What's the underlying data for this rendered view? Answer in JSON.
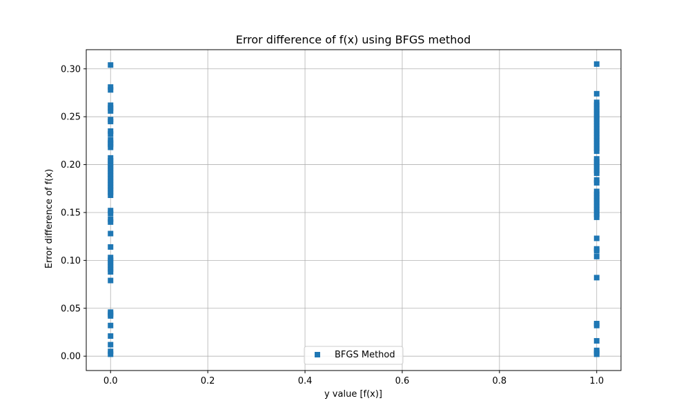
{
  "chart_data": {
    "type": "scatter",
    "title": "Error difference of f(x) using BFGS method",
    "xlabel": "y value [f(x)]",
    "ylabel": "Error difference of f(x)",
    "xlim": [
      -0.05,
      1.05
    ],
    "ylim": [
      -0.015,
      0.32
    ],
    "xticks": [
      0.0,
      0.2,
      0.4,
      0.6,
      0.8,
      1.0
    ],
    "xtick_labels": [
      "0.0",
      "0.2",
      "0.4",
      "0.6",
      "0.8",
      "1.0"
    ],
    "yticks": [
      0.0,
      0.05,
      0.1,
      0.15,
      0.2,
      0.25,
      0.3
    ],
    "ytick_labels": [
      "0.00",
      "0.05",
      "0.10",
      "0.15",
      "0.20",
      "0.25",
      "0.30"
    ],
    "grid": true,
    "legend_position": "lower-center",
    "marker": "square",
    "color": "#1f77b4",
    "series": [
      {
        "name": "BFGS Method",
        "points": [
          [
            0,
            0.304
          ],
          [
            0,
            0.281
          ],
          [
            0,
            0.278
          ],
          [
            0,
            0.262
          ],
          [
            0,
            0.259
          ],
          [
            0,
            0.256
          ],
          [
            0,
            0.247
          ],
          [
            0,
            0.245
          ],
          [
            0,
            0.235
          ],
          [
            0,
            0.232
          ],
          [
            0,
            0.226
          ],
          [
            0,
            0.223
          ],
          [
            0,
            0.221
          ],
          [
            0,
            0.218
          ],
          [
            0,
            0.207
          ],
          [
            0,
            0.204
          ],
          [
            0,
            0.201
          ],
          [
            0,
            0.198
          ],
          [
            0,
            0.195
          ],
          [
            0,
            0.192
          ],
          [
            0,
            0.189
          ],
          [
            0,
            0.186
          ],
          [
            0,
            0.183
          ],
          [
            0,
            0.18
          ],
          [
            0,
            0.177
          ],
          [
            0,
            0.174
          ],
          [
            0,
            0.171
          ],
          [
            0,
            0.168
          ],
          [
            0,
            0.152
          ],
          [
            0,
            0.149
          ],
          [
            0,
            0.143
          ],
          [
            0,
            0.14
          ],
          [
            0,
            0.128
          ],
          [
            0,
            0.114
          ],
          [
            0,
            0.103
          ],
          [
            0,
            0.1
          ],
          [
            0,
            0.097
          ],
          [
            0,
            0.094
          ],
          [
            0,
            0.091
          ],
          [
            0,
            0.088
          ],
          [
            0,
            0.079
          ],
          [
            0,
            0.046
          ],
          [
            0,
            0.044
          ],
          [
            0,
            0.042
          ],
          [
            0,
            0.032
          ],
          [
            0,
            0.021
          ],
          [
            0,
            0.012
          ],
          [
            0,
            0.005
          ],
          [
            0,
            0.002
          ],
          [
            1,
            0.305
          ],
          [
            1,
            0.274
          ],
          [
            1,
            0.265
          ],
          [
            1,
            0.262
          ],
          [
            1,
            0.259
          ],
          [
            1,
            0.256
          ],
          [
            1,
            0.253
          ],
          [
            1,
            0.25
          ],
          [
            1,
            0.247
          ],
          [
            1,
            0.244
          ],
          [
            1,
            0.241
          ],
          [
            1,
            0.238
          ],
          [
            1,
            0.235
          ],
          [
            1,
            0.232
          ],
          [
            1,
            0.229
          ],
          [
            1,
            0.226
          ],
          [
            1,
            0.223
          ],
          [
            1,
            0.22
          ],
          [
            1,
            0.217
          ],
          [
            1,
            0.214
          ],
          [
            1,
            0.206
          ],
          [
            1,
            0.203
          ],
          [
            1,
            0.2
          ],
          [
            1,
            0.197
          ],
          [
            1,
            0.194
          ],
          [
            1,
            0.191
          ],
          [
            1,
            0.184
          ],
          [
            1,
            0.181
          ],
          [
            1,
            0.172
          ],
          [
            1,
            0.169
          ],
          [
            1,
            0.166
          ],
          [
            1,
            0.163
          ],
          [
            1,
            0.16
          ],
          [
            1,
            0.157
          ],
          [
            1,
            0.154
          ],
          [
            1,
            0.151
          ],
          [
            1,
            0.148
          ],
          [
            1,
            0.145
          ],
          [
            1,
            0.123
          ],
          [
            1,
            0.112
          ],
          [
            1,
            0.11
          ],
          [
            1,
            0.104
          ],
          [
            1,
            0.082
          ],
          [
            1,
            0.034
          ],
          [
            1,
            0.032
          ],
          [
            1,
            0.016
          ],
          [
            1,
            0.006
          ],
          [
            1,
            0.004
          ],
          [
            1,
            0.002
          ]
        ]
      }
    ]
  }
}
